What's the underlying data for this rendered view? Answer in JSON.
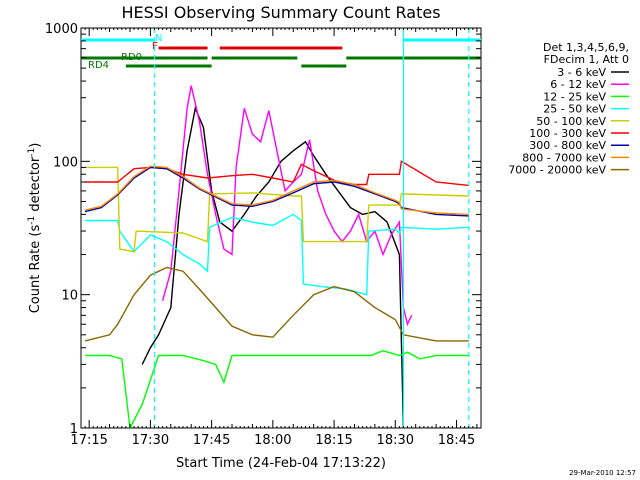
{
  "chart_data": {
    "type": "line",
    "title": "HESSI Observing Summary Count Rates",
    "xlabel": "Start Time (24-Feb-04 17:13:22)",
    "ylabel_main": "Count Rate (s",
    "ylabel_sup1": "-1",
    "ylabel_mid": " detector",
    "ylabel_sup2": "-1",
    "ylabel_end": ")",
    "yscale": "log",
    "ylim": [
      1,
      1000
    ],
    "xlim": [
      "17:13",
      "18:51"
    ],
    "x_ticks": [
      "17:15",
      "17:30",
      "17:45",
      "18:00",
      "18:15",
      "18:30",
      "18:45"
    ],
    "y_ticks": [
      "1",
      "10",
      "100",
      "1000"
    ],
    "grid": false,
    "legend_placement": "right",
    "legend_header": [
      "Det 1,3,4,5,6,9,",
      "FDecim 1, Att 0"
    ],
    "series": [
      {
        "name": "3 - 6 keV",
        "color": "#000000",
        "x": [
          "17:28",
          "17:30",
          "17:32",
          "17:35",
          "17:37",
          "17:39",
          "17:41",
          "17:43",
          "17:45",
          "17:47",
          "17:50",
          "17:53",
          "17:56",
          "17:59",
          "18:02",
          "18:05",
          "18:08",
          "18:10",
          "18:13",
          "18:16",
          "18:19",
          "18:22",
          "18:25",
          "18:28",
          "18:31",
          "18:32"
        ],
        "y": [
          3,
          4,
          5,
          8,
          40,
          120,
          250,
          180,
          60,
          35,
          30,
          40,
          55,
          70,
          100,
          120,
          140,
          110,
          80,
          60,
          45,
          40,
          42,
          35,
          20,
          1
        ]
      },
      {
        "name": "6 - 12 keV",
        "color": "#ff00ff",
        "x": [
          "17:33",
          "17:35",
          "17:37",
          "17:39",
          "17:40",
          "17:42",
          "17:44",
          "17:46",
          "17:48",
          "17:50",
          "17:51",
          "17:53",
          "17:55",
          "17:57",
          "17:59",
          "18:01",
          "18:03",
          "18:05",
          "18:07",
          "18:09",
          "18:11",
          "18:13",
          "18:15",
          "18:17",
          "18:19",
          "18:21",
          "18:23",
          "18:25",
          "18:27",
          "18:29",
          "18:31",
          "18:32",
          "18:33",
          "18:34"
        ],
        "y": [
          9,
          15,
          60,
          250,
          370,
          200,
          80,
          40,
          22,
          20,
          90,
          250,
          160,
          140,
          240,
          120,
          60,
          70,
          80,
          145,
          60,
          40,
          30,
          25,
          30,
          40,
          25,
          30,
          20,
          28,
          35,
          8,
          6,
          7
        ]
      },
      {
        "name": "12 - 25 keV",
        "color": "#00ff00",
        "x": [
          "17:14",
          "17:20",
          "17:23",
          "17:25",
          "17:28",
          "17:32",
          "17:38",
          "17:43",
          "17:46",
          "17:48",
          "17:50",
          "17:52",
          "18:00",
          "18:10",
          "18:20",
          "18:24",
          "18:27",
          "18:31",
          "18:33",
          "18:36",
          "18:40",
          "18:45",
          "18:48"
        ],
        "y": [
          3.5,
          3.5,
          3.3,
          1,
          1.5,
          3.5,
          3.5,
          3.2,
          3,
          2.2,
          3.5,
          3.5,
          3.5,
          3.5,
          3.5,
          3.5,
          3.8,
          3.5,
          3.7,
          3.3,
          3.5,
          3.5,
          3.5
        ]
      },
      {
        "name": "25 - 50 keV",
        "color": "#00ffff",
        "x": [
          "17:14",
          "17:22",
          "17:22.5",
          "17:26",
          "17:30",
          "17:34",
          "17:38",
          "17:42",
          "17:44",
          "17:44.5",
          "17:50",
          "17:55",
          "18:00",
          "18:05",
          "18:07",
          "18:07.5",
          "18:12",
          "18:18",
          "18:23",
          "18:23.5",
          "18:30",
          "18:31",
          "18:31.5",
          "18:40",
          "18:48"
        ],
        "y": [
          36,
          36,
          30,
          21,
          28,
          25,
          20,
          17,
          15,
          32,
          38,
          35,
          33,
          40,
          36,
          12,
          11.5,
          11,
          10,
          30,
          31,
          29,
          32,
          31,
          32
        ]
      },
      {
        "name": "50 - 100 keV",
        "color": "#cccc00",
        "x": [
          "17:14",
          "17:22",
          "17:22.5",
          "17:26",
          "17:26.5",
          "17:38",
          "17:44",
          "17:44.5",
          "17:55",
          "18:05",
          "18:07",
          "18:07.5",
          "18:15",
          "18:23",
          "18:23.5",
          "18:31",
          "18:31.5",
          "18:48"
        ],
        "y": [
          90,
          90,
          22,
          21,
          30,
          29,
          25,
          57,
          58,
          55,
          55,
          25,
          25,
          25,
          47,
          47,
          57,
          55
        ]
      },
      {
        "name": "100 - 300 keV",
        "color": "#ff0000",
        "x": [
          "17:14",
          "17:22",
          "17:26",
          "17:30",
          "17:34",
          "17:38",
          "17:44",
          "17:50",
          "17:55",
          "18:00",
          "18:05",
          "18:07",
          "18:10",
          "18:16",
          "18:20",
          "18:23",
          "18:23.5",
          "18:31",
          "18:31.5",
          "18:40",
          "18:48"
        ],
        "y": [
          70,
          70,
          88,
          90,
          88,
          80,
          75,
          78,
          80,
          75,
          70,
          95,
          85,
          70,
          67,
          67,
          80,
          80,
          100,
          70,
          66
        ]
      },
      {
        "name": "300 - 800 keV",
        "color": "#0000aa",
        "x": [
          "17:14",
          "17:18",
          "17:22",
          "17:26",
          "17:30",
          "17:34",
          "17:38",
          "17:42",
          "17:46",
          "17:50",
          "17:55",
          "18:00",
          "18:05",
          "18:10",
          "18:15",
          "18:20",
          "18:25",
          "18:30",
          "18:31",
          "18:31.5",
          "18:40",
          "18:48"
        ],
        "y": [
          42,
          45,
          56,
          75,
          90,
          88,
          75,
          62,
          54,
          47,
          46,
          50,
          58,
          68,
          70,
          65,
          57,
          50,
          48,
          45,
          40,
          39
        ]
      },
      {
        "name": "800 - 7000 keV",
        "color": "#ff8800",
        "x": [
          "17:14",
          "17:18",
          "17:22",
          "17:26",
          "17:30",
          "17:34",
          "17:38",
          "17:42",
          "17:46",
          "17:50",
          "17:55",
          "18:00",
          "18:05",
          "18:10",
          "18:15",
          "18:20",
          "18:25",
          "18:30",
          "18:31",
          "18:31.5",
          "18:40",
          "18:48"
        ],
        "y": [
          43,
          46,
          57,
          77,
          92,
          90,
          77,
          63,
          55,
          48,
          47,
          51,
          60,
          70,
          72,
          67,
          58,
          51,
          49,
          44,
          41,
          40
        ]
      },
      {
        "name": "7000 - 20000 keV",
        "color": "#886600",
        "x": [
          "17:14",
          "17:20",
          "17:22",
          "17:26",
          "17:30",
          "17:34",
          "17:38",
          "17:42",
          "17:46",
          "17:50",
          "17:55",
          "18:00",
          "18:05",
          "18:10",
          "18:15",
          "18:20",
          "18:25",
          "18:30",
          "18:32",
          "18:40",
          "18:48"
        ],
        "y": [
          4.5,
          5,
          6,
          10,
          14,
          16,
          15,
          11,
          8,
          5.8,
          5,
          4.8,
          7,
          10,
          11.5,
          10.5,
          8,
          6.5,
          5,
          4.5,
          4.5
        ]
      }
    ],
    "overlay_flags": [
      {
        "label": "N",
        "color": "#00ffff",
        "segments": [
          [
            "17:13",
            "17:31"
          ],
          [
            "18:32",
            "18:51"
          ]
        ]
      },
      {
        "label": "F",
        "color": "#dd0000",
        "segments": [
          [
            "17:32",
            "17:44"
          ],
          [
            "17:47",
            "18:17"
          ]
        ]
      },
      {
        "label": "RD0",
        "color": "#007700",
        "segments": [
          [
            "17:13",
            "17:44"
          ],
          [
            "17:45",
            "18:06"
          ],
          [
            "18:18",
            "18:51"
          ]
        ]
      },
      {
        "label": "RD4",
        "color": "#007700",
        "segments": [
          [
            "17:24",
            "17:45"
          ],
          [
            "18:07",
            "18:18"
          ]
        ]
      }
    ],
    "vertical_markers": [
      {
        "time": "17:31",
        "style": "dashed",
        "color": "#00ffff"
      },
      {
        "time": "18:32",
        "style": "solid",
        "color": "#00ffff"
      },
      {
        "time": "18:48",
        "style": "dashed",
        "color": "#00ffff"
      }
    ]
  },
  "timestamp": "29-Mar-2010 12:57"
}
